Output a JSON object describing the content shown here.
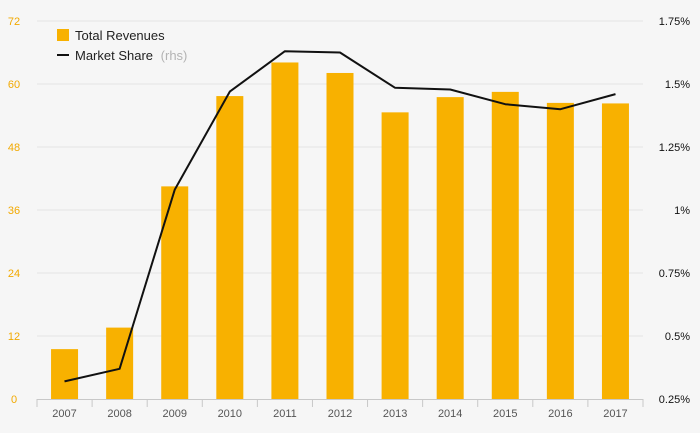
{
  "chart_data": {
    "type": "bar",
    "categories": [
      "2007",
      "2008",
      "2009",
      "2010",
      "2011",
      "2012",
      "2013",
      "2014",
      "2015",
      "2016",
      "2017"
    ],
    "series": [
      {
        "name": "Total Revenues",
        "type": "bar",
        "axis": "left",
        "values": [
          9.5,
          13.6,
          40.5,
          57.7,
          64.1,
          62.1,
          54.6,
          57.5,
          58.5,
          56.4,
          56.3
        ]
      },
      {
        "name": "Market Share",
        "legend_note": "(rhs)",
        "type": "line",
        "axis": "right",
        "values": [
          0.32,
          0.37,
          1.08,
          1.47,
          1.63,
          1.625,
          1.485,
          1.478,
          1.42,
          1.4,
          1.46
        ]
      }
    ],
    "left_axis": {
      "ylim": [
        0,
        72
      ],
      "ticks": [
        0,
        12,
        24,
        36,
        48,
        60,
        72
      ],
      "tick_labels": [
        "0",
        "12",
        "24",
        "36",
        "48",
        "60",
        "72"
      ]
    },
    "right_axis": {
      "ylim": [
        0.25,
        1.75
      ],
      "ticks": [
        0.25,
        0.5,
        0.75,
        1.0,
        1.25,
        1.5,
        1.75
      ],
      "tick_labels": [
        "0.25%",
        "0.5%",
        "0.75%",
        "1%",
        "1.25%",
        "1.5%",
        "1.75%"
      ]
    },
    "grid": true,
    "legend_position": "top-left",
    "colors": {
      "bar": "#f8b100",
      "line": "#111111",
      "left_tick": "#f2a900",
      "right_tick": "#111111",
      "grid": "#e4e4e4",
      "background": "#f6f6f6"
    }
  }
}
